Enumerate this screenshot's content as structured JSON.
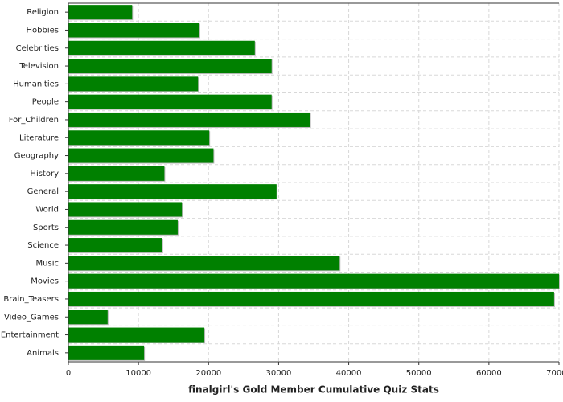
{
  "chart_data": {
    "type": "hbar",
    "title": "finalgirl's Gold Member Cumulative Quiz Stats",
    "categories": [
      "Religion",
      "Hobbies",
      "Celebrities",
      "Television",
      "Humanities",
      "People",
      "For_Children",
      "Literature",
      "Geography",
      "History",
      "General",
      "World",
      "Sports",
      "Science",
      "Music",
      "Movies",
      "Brain_Teasers",
      "Video_Games",
      "Entertainment",
      "Animals"
    ],
    "values": [
      9100,
      18700,
      26600,
      29000,
      18500,
      29000,
      34500,
      20100,
      20700,
      13700,
      29700,
      16200,
      15600,
      13400,
      38700,
      70000,
      69300,
      5600,
      19400,
      10800
    ],
    "color": "#008000",
    "xlim": [
      0,
      70000
    ],
    "xticks": [
      0,
      10000,
      20000,
      30000,
      40000,
      50000,
      60000,
      70000
    ],
    "grid": true
  }
}
